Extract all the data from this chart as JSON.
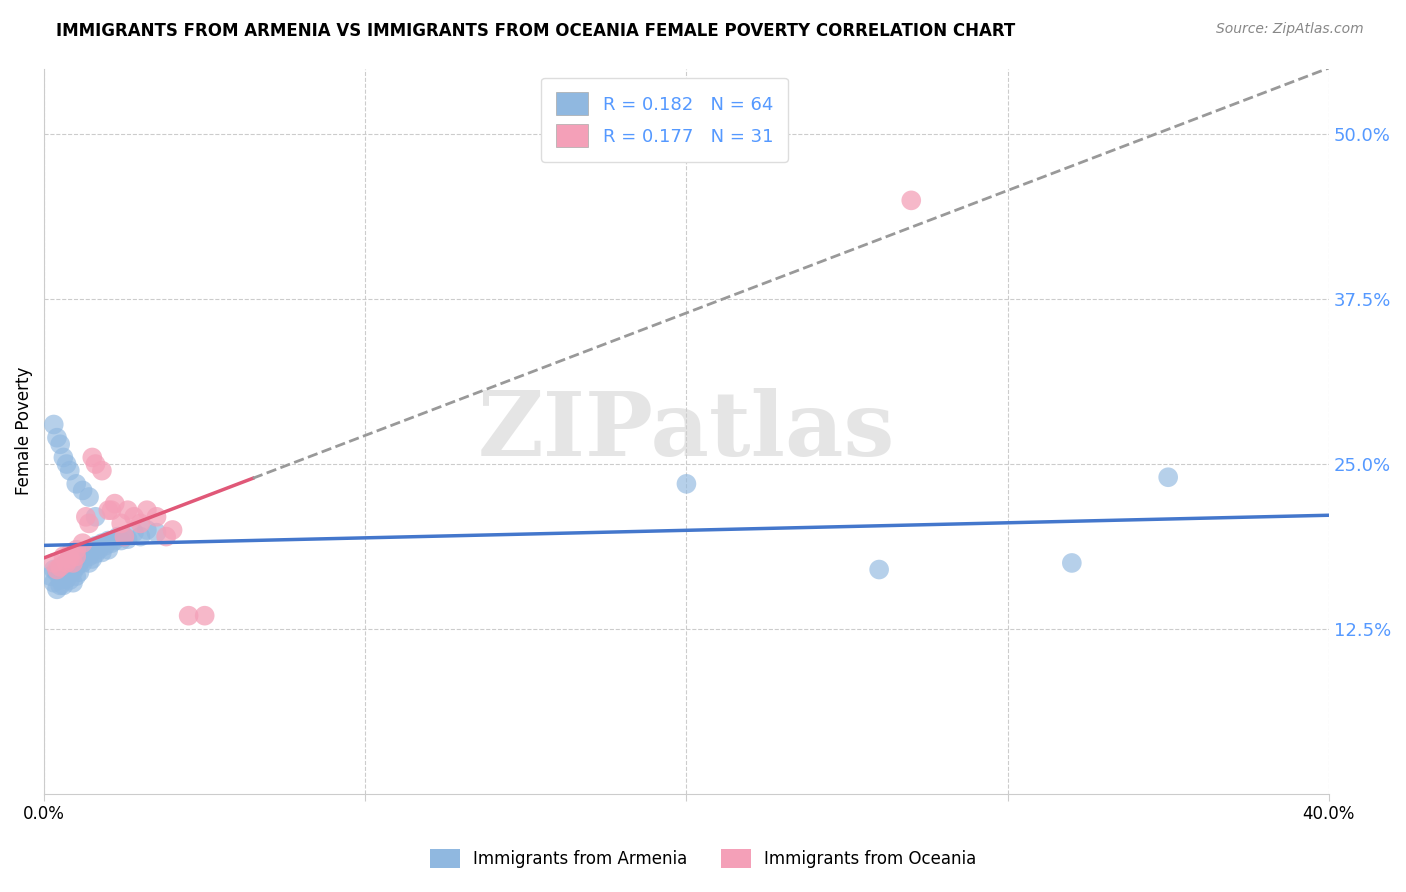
{
  "title": "IMMIGRANTS FROM ARMENIA VS IMMIGRANTS FROM OCEANIA FEMALE POVERTY CORRELATION CHART",
  "source": "Source: ZipAtlas.com",
  "ylabel": "Female Poverty",
  "yticks": [
    0.125,
    0.25,
    0.375,
    0.5
  ],
  "ytick_labels": [
    "12.5%",
    "25.0%",
    "37.5%",
    "50.0%"
  ],
  "xlim": [
    0.0,
    0.4
  ],
  "ylim": [
    0.0,
    0.55
  ],
  "armenia_R": 0.182,
  "armenia_N": 64,
  "oceania_R": 0.177,
  "oceania_N": 31,
  "armenia_color": "#90B8E0",
  "oceania_color": "#F4A0B8",
  "armenia_line_color": "#4477CC",
  "oceania_line_color": "#E05878",
  "armenia_x": [
    0.002,
    0.003,
    0.003,
    0.004,
    0.004,
    0.005,
    0.005,
    0.005,
    0.006,
    0.006,
    0.006,
    0.007,
    0.007,
    0.007,
    0.008,
    0.008,
    0.008,
    0.009,
    0.009,
    0.009,
    0.01,
    0.01,
    0.01,
    0.011,
    0.011,
    0.012,
    0.012,
    0.013,
    0.014,
    0.014,
    0.015,
    0.015,
    0.016,
    0.016,
    0.017,
    0.018,
    0.018,
    0.019,
    0.02,
    0.02,
    0.021,
    0.022,
    0.023,
    0.024,
    0.025,
    0.026,
    0.028,
    0.03,
    0.032,
    0.035,
    0.003,
    0.004,
    0.005,
    0.006,
    0.007,
    0.008,
    0.01,
    0.012,
    0.014,
    0.016,
    0.2,
    0.26,
    0.32,
    0.35
  ],
  "armenia_y": [
    0.165,
    0.17,
    0.16,
    0.168,
    0.155,
    0.162,
    0.17,
    0.158,
    0.172,
    0.165,
    0.158,
    0.175,
    0.168,
    0.163,
    0.178,
    0.17,
    0.162,
    0.175,
    0.168,
    0.16,
    0.178,
    0.172,
    0.165,
    0.175,
    0.168,
    0.18,
    0.175,
    0.182,
    0.18,
    0.175,
    0.185,
    0.178,
    0.188,
    0.182,
    0.185,
    0.19,
    0.183,
    0.188,
    0.192,
    0.185,
    0.19,
    0.192,
    0.195,
    0.192,
    0.195,
    0.193,
    0.198,
    0.195,
    0.2,
    0.198,
    0.28,
    0.27,
    0.265,
    0.255,
    0.25,
    0.245,
    0.235,
    0.23,
    0.225,
    0.21,
    0.235,
    0.17,
    0.175,
    0.24
  ],
  "oceania_x": [
    0.003,
    0.004,
    0.005,
    0.006,
    0.007,
    0.008,
    0.008,
    0.009,
    0.01,
    0.01,
    0.012,
    0.013,
    0.014,
    0.015,
    0.016,
    0.018,
    0.02,
    0.021,
    0.022,
    0.024,
    0.025,
    0.026,
    0.028,
    0.03,
    0.032,
    0.035,
    0.038,
    0.04,
    0.045,
    0.05,
    0.27
  ],
  "oceania_y": [
    0.175,
    0.17,
    0.172,
    0.18,
    0.175,
    0.178,
    0.182,
    0.175,
    0.185,
    0.18,
    0.19,
    0.21,
    0.205,
    0.255,
    0.25,
    0.245,
    0.215,
    0.215,
    0.22,
    0.205,
    0.195,
    0.215,
    0.21,
    0.205,
    0.215,
    0.21,
    0.195,
    0.2,
    0.135,
    0.135,
    0.45
  ]
}
